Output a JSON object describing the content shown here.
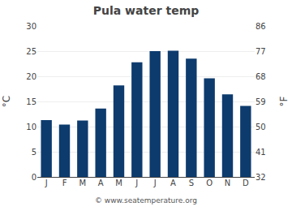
{
  "chart_data": {
    "type": "bar",
    "title": "Pula water temp",
    "categories": [
      "J",
      "F",
      "M",
      "A",
      "M",
      "J",
      "J",
      "A",
      "S",
      "O",
      "N",
      "D"
    ],
    "values": [
      11.3,
      10.4,
      11.2,
      13.6,
      18.2,
      22.8,
      25.0,
      25.1,
      23.5,
      19.6,
      16.4,
      14.1
    ],
    "color": "#0d3b6e",
    "ylabel": "°C",
    "y2label": "°F",
    "ylim": [
      0,
      30
    ],
    "yticks": [
      0,
      5,
      10,
      15,
      20,
      25,
      30
    ],
    "y2lim": [
      32,
      86
    ],
    "y2ticks": [
      32,
      41,
      50,
      59,
      68,
      77,
      86
    ],
    "grid": true,
    "annotations": [
      "© www.seatemperature.org"
    ]
  }
}
